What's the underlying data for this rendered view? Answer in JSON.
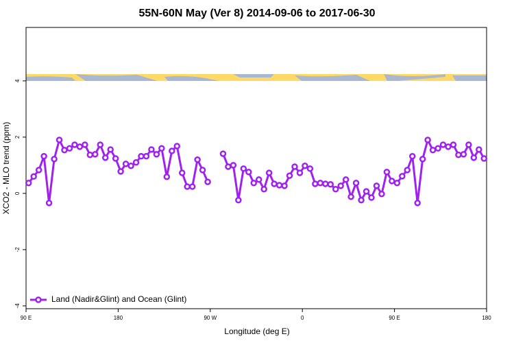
{
  "chart_data": {
    "type": "line",
    "title": "55N-60N May (Ver 8)   2014-09-06 to 2017-06-30",
    "xlabel": "Longitude (deg E)",
    "ylabel": "XCO2 - MLO trend (ppm)",
    "xlim": [
      90,
      540
    ],
    "ylim": [
      -4.1,
      5.9
    ],
    "xticks": [
      {
        "value": 90,
        "label": "90 E"
      },
      180,
      {
        "value": 270,
        "label": "90 W"
      },
      {
        "value": 360,
        "label": "0"
      },
      {
        "value": 450,
        "label": "90 E"
      },
      {
        "value": 540,
        "label": "180"
      }
    ],
    "yticks": [
      -4,
      -2,
      0,
      2,
      4
    ],
    "legend": "bottom-left",
    "x": [
      92.5,
      97.5,
      102.5,
      107.5,
      112.5,
      117.5,
      122.5,
      127.5,
      132.5,
      137.5,
      142.5,
      147.5,
      152.5,
      157.5,
      162.5,
      167.5,
      172.5,
      177.5,
      182.5,
      187.5,
      192.5,
      197.5,
      202.5,
      207.5,
      212.5,
      217.5,
      222.5,
      227.5,
      232.5,
      237.5,
      242.5,
      247.5,
      252.5,
      257.5,
      262.5,
      267.5,
      272.5,
      277.5,
      282.5,
      287.5,
      292.5,
      297.5,
      302.5,
      307.5,
      312.5,
      317.5,
      322.5,
      327.5,
      332.5,
      337.5,
      342.5,
      347.5,
      352.5,
      357.5,
      362.5,
      367.5,
      372.5,
      377.5,
      382.5,
      387.5,
      392.5,
      397.5,
      402.5,
      407.5,
      412.5,
      417.5,
      422.5,
      427.5,
      432.5,
      437.5,
      442.5,
      447.5,
      452.5,
      457.5,
      462.5,
      467.5,
      472.5,
      477.5,
      482.5,
      487.5,
      492.5,
      497.5,
      502.5,
      507.5,
      512.5,
      517.5,
      522.5,
      527.5,
      532.5,
      537.5
    ],
    "series": [
      {
        "name": "Land (Nadir&Glint) and Ocean (Glint)",
        "color": "#a020f0",
        "values": [
          0.37,
          0.6,
          0.83,
          1.32,
          -0.34,
          1.22,
          1.9,
          1.54,
          1.6,
          1.73,
          1.66,
          1.73,
          1.37,
          1.39,
          1.73,
          1.27,
          1.56,
          1.24,
          0.78,
          1.05,
          0.98,
          1.1,
          1.32,
          1.32,
          1.56,
          1.39,
          1.6,
          0.59,
          1.51,
          1.68,
          0.73,
          0.24,
          0.24,
          1.2,
          0.83,
          0.41,
          null,
          null,
          1.41,
          0.95,
          1.0,
          -0.24,
          0.88,
          0.76,
          0.37,
          0.49,
          0.15,
          0.73,
          0.34,
          0.29,
          0.27,
          0.63,
          0.95,
          0.73,
          0.98,
          0.88,
          0.34,
          0.37,
          0.34,
          0.32,
          0.15,
          0.27,
          0.49,
          -0.12,
          0.37,
          -0.24,
          0.07,
          -0.15,
          0.27,
          -0.02,
          0.76,
          0.44,
          0.37,
          0.61,
          0.83,
          1.32,
          -0.34,
          1.22,
          1.9,
          1.54,
          1.6,
          1.73,
          1.66,
          1.73,
          1.37,
          1.39,
          1.73,
          1.27,
          1.56,
          1.24
        ]
      }
    ]
  }
}
